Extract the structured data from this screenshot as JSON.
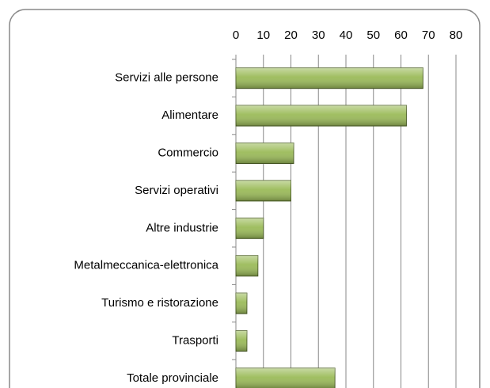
{
  "chart_data": {
    "type": "bar",
    "orientation": "horizontal",
    "categories": [
      "Servizi alle persone",
      "Alimentare",
      "Commercio",
      "Servizi operativi",
      "Altre industrie",
      "Metalmeccanica-elettronica",
      "Turismo e ristorazione",
      "Trasporti",
      "Totale provinciale"
    ],
    "values": [
      68,
      62,
      21,
      20,
      10,
      8,
      4,
      4,
      36
    ],
    "color": "#9bbb59",
    "xlim": [
      0,
      80
    ],
    "xticks": [
      0,
      10,
      20,
      30,
      40,
      50,
      60,
      70,
      80
    ],
    "grid": true
  }
}
